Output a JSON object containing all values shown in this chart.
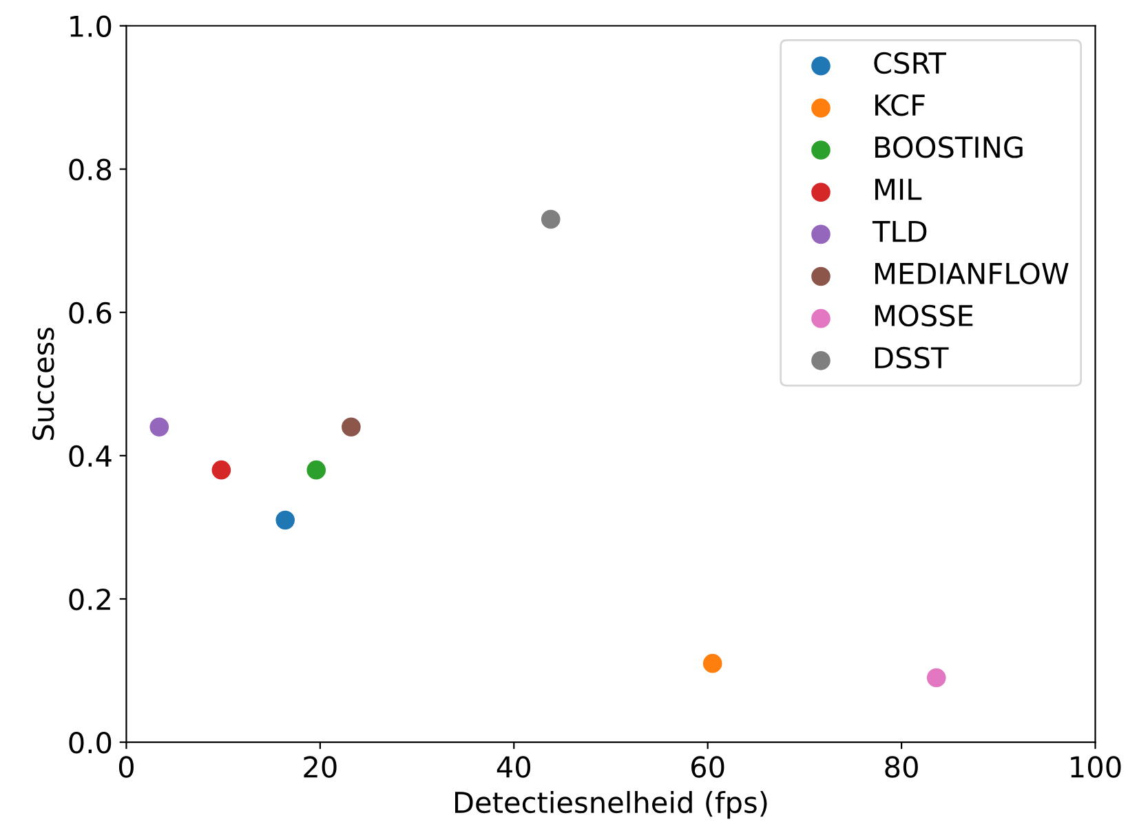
{
  "chart_data": {
    "type": "scatter",
    "xlabel": "Detectiesnelheid (fps)",
    "ylabel": "Success",
    "xlim": [
      0,
      100
    ],
    "xticks": [
      0,
      20,
      40,
      60,
      80,
      100
    ],
    "ylim": [
      0,
      1.0
    ],
    "yticks": [
      {
        "value": 0,
        "label": "0.0"
      },
      {
        "value": 0.2,
        "label": "0.2"
      },
      {
        "value": 0.4,
        "label": "0.4"
      },
      {
        "value": 0.6,
        "label": "0.6"
      },
      {
        "value": 0.8,
        "label": "0.8"
      },
      {
        "value": 1.0,
        "label": "1.0"
      }
    ],
    "legend": "top right",
    "marker": "circle",
    "grid": false,
    "series": [
      {
        "name": "CSRT",
        "color": "#1f77b4",
        "x": [
          16.4
        ],
        "values": [
          0.31
        ]
      },
      {
        "name": "KCF",
        "color": "#ff7f0e",
        "x": [
          60.5
        ],
        "values": [
          0.11
        ]
      },
      {
        "name": "BOOSTING",
        "color": "#2ca02c",
        "x": [
          19.6
        ],
        "values": [
          0.38
        ]
      },
      {
        "name": "MIL",
        "color": "#d62728",
        "x": [
          9.8
        ],
        "values": [
          0.38
        ]
      },
      {
        "name": "TLD",
        "color": "#9467bd",
        "x": [
          3.4
        ],
        "values": [
          0.44
        ]
      },
      {
        "name": "MEDIANFLOW",
        "color": "#8c564b",
        "x": [
          23.2
        ],
        "values": [
          0.44
        ]
      },
      {
        "name": "MOSSE",
        "color": "#e377c2",
        "x": [
          83.6
        ],
        "values": [
          0.09
        ]
      },
      {
        "name": "DSST",
        "color": "#7f7f7f",
        "x": [
          43.8
        ],
        "values": [
          0.73
        ]
      }
    ]
  }
}
